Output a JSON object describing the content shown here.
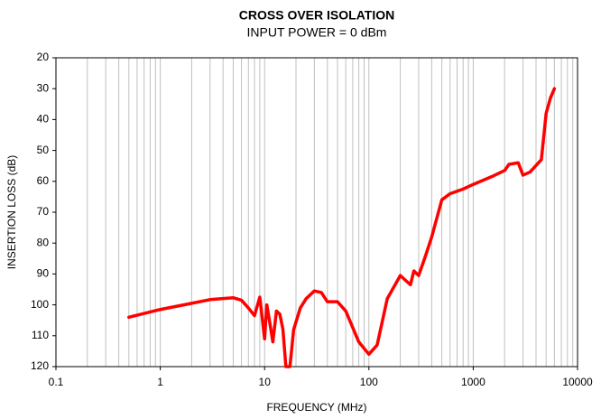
{
  "chart_data": {
    "type": "line",
    "title": "CROSS OVER ISOLATION",
    "subtitle": "INPUT POWER = 0 dBm",
    "x_label": "FREQUENCY (MHz)",
    "y_label": "INSERTION LOSS (dB)",
    "x_log": true,
    "y_reversed": true,
    "grid": "x-minor",
    "xlim": [
      0.1,
      10000
    ],
    "xticks": [
      0.1,
      1,
      10,
      100,
      1000,
      10000
    ],
    "ylim": [
      20,
      120
    ],
    "yticks": [
      20,
      30,
      40,
      50,
      60,
      70,
      80,
      90,
      100,
      110,
      120
    ],
    "x": [
      0.5,
      1,
      2,
      3,
      5,
      6,
      7,
      8,
      9,
      10,
      10.5,
      11,
      12,
      13,
      14,
      15,
      16,
      17.5,
      19,
      22,
      25,
      30,
      35,
      40,
      50,
      60,
      80,
      100,
      120,
      150,
      200,
      250,
      270,
      300,
      350,
      400,
      500,
      600,
      800,
      1000,
      1500,
      2000,
      2200,
      2700,
      3000,
      3500,
      4500,
      5000,
      5500,
      6000
    ],
    "series": [
      {
        "color": "#ff0000",
        "values": [
          104,
          101.5,
          99.5,
          98.3,
          97.7,
          98.5,
          101,
          103.5,
          97.5,
          111,
          100,
          104,
          112,
          102,
          103,
          108,
          120,
          120,
          108,
          101,
          98,
          95.5,
          96,
          99,
          99,
          102,
          112,
          116,
          113,
          98,
          90.5,
          93.5,
          89,
          90.5,
          84,
          78,
          66,
          64,
          62.5,
          61,
          58.5,
          56.5,
          54.5,
          54,
          58,
          57,
          53,
          38,
          33,
          30
        ]
      }
    ]
  }
}
